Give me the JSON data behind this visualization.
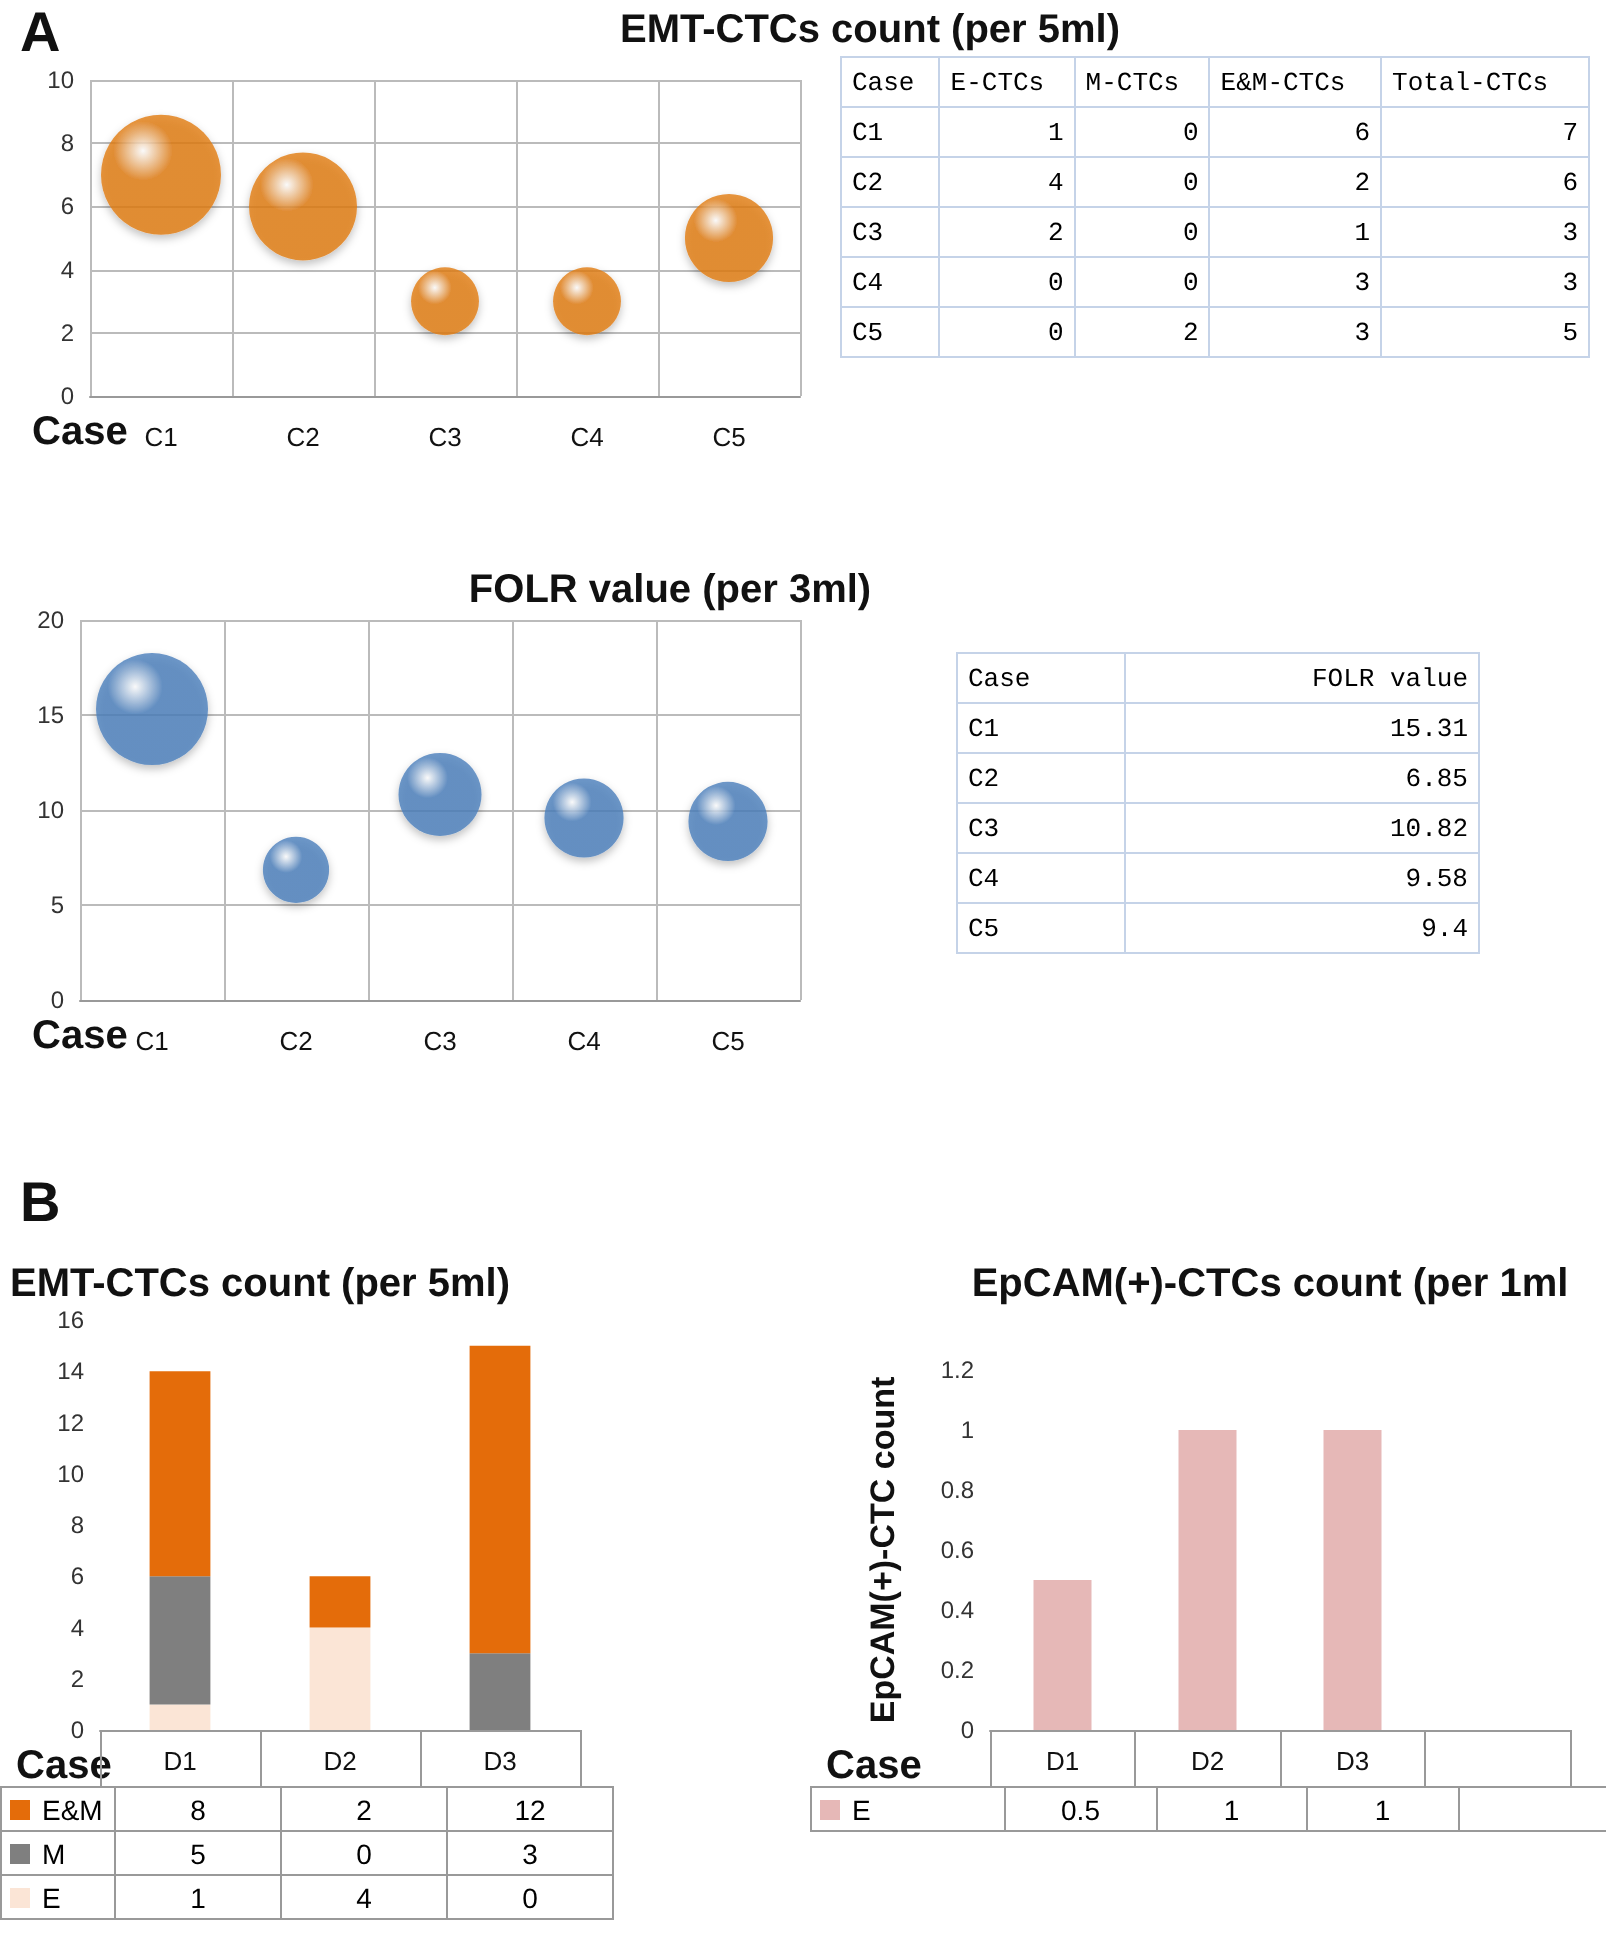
{
  "chart_data": [
    {
      "type": "bubble",
      "title": "EMT-CTCs count (per 5ml)",
      "xlabel": "Case",
      "annotations": [
        "A"
      ],
      "categories": [
        "C1",
        "C2",
        "C3",
        "C4",
        "C5"
      ],
      "series": [
        {
          "color": "#e07b12",
          "values": [
            7,
            6,
            3,
            3,
            5
          ],
          "sizes": [
            1,
            0.81,
            0.32,
            0.32,
            0.54
          ]
        }
      ],
      "ylim": [
        0,
        10
      ],
      "yticks": [
        0,
        2,
        4,
        6,
        8,
        10
      ],
      "grid": true
    },
    {
      "type": "other",
      "xlabel": "Case",
      "data_labels": true,
      "categories": [
        "C1",
        "C2",
        "C3",
        "C4",
        "C5"
      ],
      "series": [
        {
          "name": "E-CTCs",
          "values": [
            1,
            4,
            2,
            0,
            0
          ]
        },
        {
          "name": "M-CTCs",
          "values": [
            0,
            0,
            0,
            0,
            2
          ]
        },
        {
          "name": "E&M-CTCs",
          "values": [
            6,
            2,
            1,
            3,
            3
          ]
        },
        {
          "name": "Total-CTCs",
          "values": [
            7,
            6,
            3,
            3,
            5
          ]
        }
      ]
    },
    {
      "type": "bubble",
      "title": "FOLR value (per 3ml)",
      "xlabel": "Case",
      "categories": [
        "C1",
        "C2",
        "C3",
        "C4",
        "C5"
      ],
      "series": [
        {
          "color": "#4a7ebb",
          "values": [
            15.31,
            6.85,
            10.82,
            9.58,
            9.4
          ],
          "sizes": [
            1,
            0.35,
            0.55,
            0.5,
            0.5
          ]
        }
      ],
      "ylim": [
        0,
        20
      ],
      "yticks": [
        0,
        5,
        10,
        15,
        20
      ],
      "grid": true
    },
    {
      "type": "other",
      "xlabel": "Case",
      "data_labels": true,
      "categories": [
        "C1",
        "C2",
        "C3",
        "C4",
        "C5"
      ],
      "series": [
        {
          "name": "FOLR value",
          "values": [
            15.31,
            6.85,
            10.82,
            9.58,
            9.4
          ]
        }
      ]
    },
    {
      "type": "bar",
      "stacked": true,
      "title": "EMT-CTCs count (per 5ml)",
      "xlabel": "Case",
      "annotations": [
        "B"
      ],
      "categories": [
        "D1",
        "D2",
        "D3"
      ],
      "series": [
        {
          "name": "E",
          "color": "#fbe5d6",
          "values": [
            1,
            4,
            0
          ]
        },
        {
          "name": "M",
          "color": "#7f7f7f",
          "values": [
            5,
            0,
            3
          ]
        },
        {
          "name": "E&M",
          "color": "#e46c0a",
          "values": [
            8,
            2,
            12
          ]
        }
      ],
      "ylim": [
        0,
        16
      ],
      "yticks": [
        0,
        2,
        4,
        6,
        8,
        10,
        12,
        14,
        16
      ],
      "grid": false,
      "legend": "bottom",
      "data_labels": true
    },
    {
      "type": "bar",
      "title": "EpCAM(+)-CTCs count (per 1ml",
      "xlabel": "Case",
      "ylabel": "EpCAM(+)-CTC count",
      "categories": [
        "D1",
        "D2",
        "D3",
        null
      ],
      "series": [
        {
          "name": "E",
          "color": "#e6b8b7",
          "values": [
            0.5,
            1,
            1,
            null
          ]
        }
      ],
      "ylim": [
        0,
        1.2
      ],
      "yticks": [
        0,
        0.2,
        0.4,
        0.6,
        0.8,
        1,
        1.2
      ],
      "grid": false,
      "legend": "bottom",
      "data_labels": true
    }
  ]
}
